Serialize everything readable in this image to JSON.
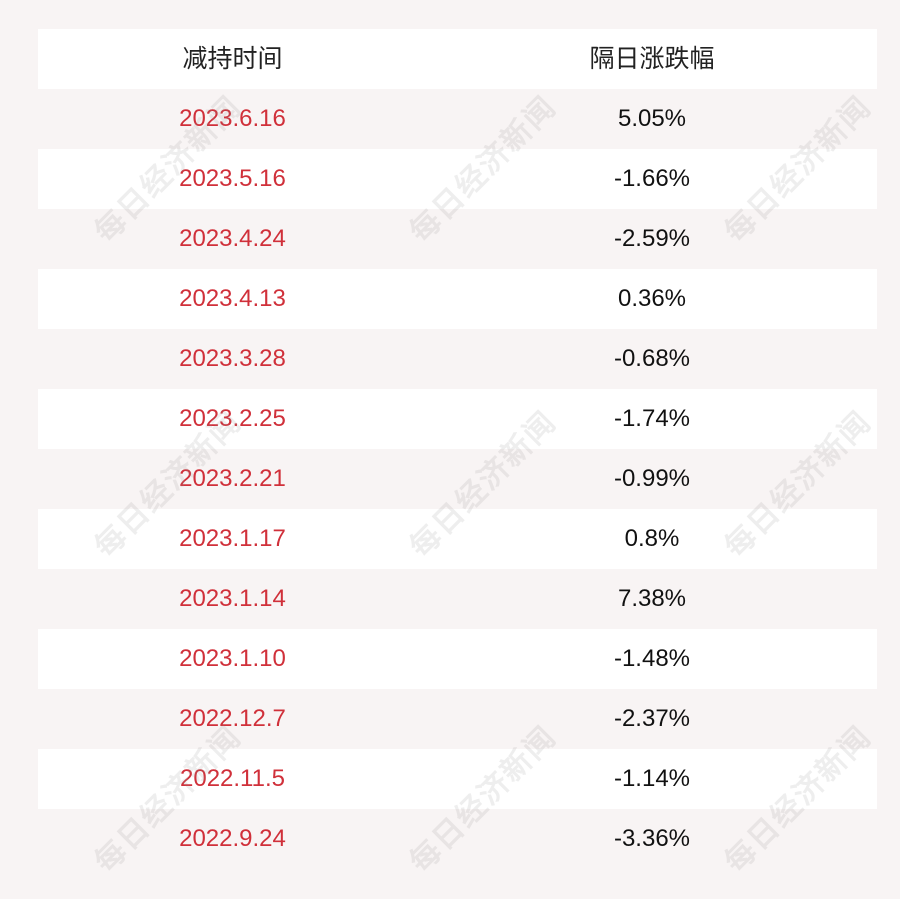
{
  "table": {
    "headers": [
      "减持时间",
      "隔日涨跌幅"
    ],
    "rows": [
      {
        "date": "2023.6.16",
        "change": "5.05%"
      },
      {
        "date": "2023.5.16",
        "change": "-1.66%"
      },
      {
        "date": "2023.4.24",
        "change": "-2.59%"
      },
      {
        "date": "2023.4.13",
        "change": "0.36%"
      },
      {
        "date": "2023.3.28",
        "change": "-0.68%"
      },
      {
        "date": "2023.2.25",
        "change": "-1.74%"
      },
      {
        "date": "2023.2.21",
        "change": "-0.99%"
      },
      {
        "date": "2023.1.17",
        "change": "0.8%"
      },
      {
        "date": "2023.1.14",
        "change": "7.38%"
      },
      {
        "date": "2023.1.10",
        "change": "-1.48%"
      },
      {
        "date": "2022.12.7",
        "change": "-2.37%"
      },
      {
        "date": "2022.11.5",
        "change": "-1.14%"
      },
      {
        "date": "2022.9.24",
        "change": "-3.36%"
      }
    ]
  },
  "watermark": {
    "text": "每日经济新闻"
  },
  "colors": {
    "date_text": "#d0303a",
    "change_text": "#111111",
    "header_text": "#222222",
    "row_white": "#ffffff",
    "row_tinted": "#f8f4f4"
  }
}
